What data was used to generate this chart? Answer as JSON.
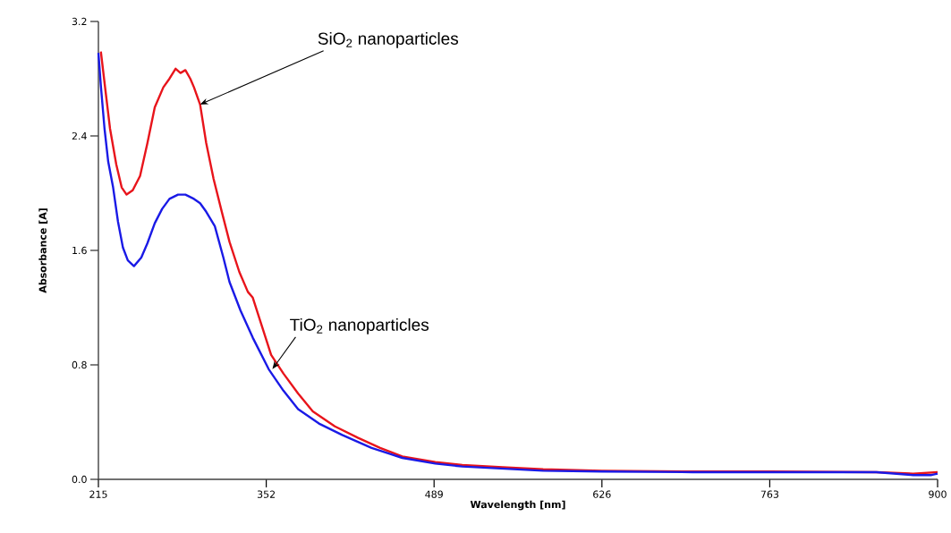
{
  "chart_data": {
    "type": "line",
    "xlabel": "Wavelength [nm]",
    "ylabel": "Absorbance [A]",
    "xlim": [
      215,
      900
    ],
    "ylim": [
      0,
      3.2
    ],
    "xticks": [
      215,
      352,
      489,
      626,
      763,
      900
    ],
    "yticks": [
      {
        "value": 0,
        "label": "0.0"
      },
      {
        "value": 0.8,
        "label": "0.8"
      },
      {
        "value": 1.6,
        "label": "1.6"
      },
      {
        "value": 2.4,
        "label": "2.4"
      },
      {
        "value": 3.2,
        "label": "3.2"
      }
    ],
    "grid": false,
    "series": [
      {
        "color": "#e8141b",
        "x": [
          217,
          221,
          224.5,
          229.6,
          234,
          238,
          243,
          249,
          255,
          261,
          268,
          273,
          278,
          282,
          286,
          290,
          293,
          298,
          303,
          309,
          316,
          322,
          330,
          337,
          341,
          356,
          366,
          378,
          390,
          408,
          427,
          445,
          463,
          490,
          512,
          545,
          578,
          626,
          700,
          763,
          850,
          880,
          900
        ],
        "values": [
          2.99,
          2.7,
          2.45,
          2.2,
          2.04,
          1.99,
          2.02,
          2.12,
          2.35,
          2.6,
          2.74,
          2.8,
          2.87,
          2.84,
          2.86,
          2.8,
          2.74,
          2.62,
          2.35,
          2.1,
          1.86,
          1.66,
          1.45,
          1.31,
          1.27,
          0.87,
          0.74,
          0.6,
          0.475,
          0.37,
          0.29,
          0.22,
          0.16,
          0.12,
          0.1,
          0.085,
          0.07,
          0.06,
          0.055,
          0.055,
          0.05,
          0.04,
          0.05
        ]
      },
      {
        "color": "#1a1ae6",
        "x": [
          215,
          217,
          220,
          223,
          227,
          231,
          235,
          239,
          244,
          250,
          255,
          261,
          267,
          273,
          280,
          286,
          293,
          298,
          303,
          310,
          317,
          322,
          331,
          341,
          354,
          366,
          378,
          395,
          414,
          438,
          463,
          490,
          512,
          545,
          578,
          626,
          700,
          763,
          850,
          880,
          895,
          900
        ],
        "values": [
          2.98,
          2.75,
          2.45,
          2.22,
          2.04,
          1.8,
          1.62,
          1.53,
          1.49,
          1.55,
          1.65,
          1.79,
          1.89,
          1.96,
          1.99,
          1.99,
          1.96,
          1.93,
          1.87,
          1.77,
          1.55,
          1.38,
          1.18,
          0.99,
          0.77,
          0.62,
          0.49,
          0.39,
          0.31,
          0.22,
          0.15,
          0.11,
          0.09,
          0.075,
          0.06,
          0.055,
          0.05,
          0.05,
          0.05,
          0.03,
          0.03,
          0.04
        ]
      }
    ],
    "annotations": [
      {
        "text": "SiO$_{2}$ nanoparticles",
        "x": 298,
        "y": 2.62
      },
      {
        "text": "TiO$_{2}$ nanoparticles",
        "x": 357,
        "y": 0.77
      }
    ]
  }
}
